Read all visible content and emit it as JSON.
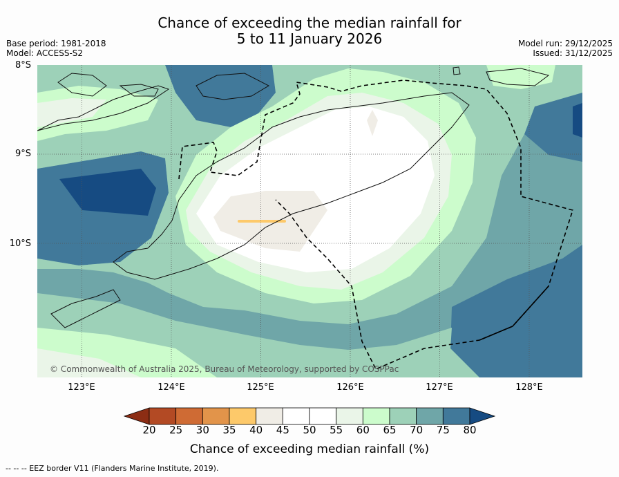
{
  "header": {
    "title_line1": "Chance of exceeding the median rainfall for",
    "title_line2": "5 to 11 January 2026",
    "base_period": "Base period: 1981-2018",
    "model": "Model: ACCESS-S2",
    "model_run": "Model run: 29/12/2025",
    "issued": "Issued: 31/12/2025"
  },
  "map": {
    "lat_labels": [
      "8°S",
      "9°S",
      "10°S"
    ],
    "lon_labels": [
      "123°E",
      "124°E",
      "125°E",
      "126°E",
      "127°E",
      "128°E"
    ],
    "copyright": "© Commonwealth of Australia 2025, Bureau of Meteorology, supported by COSPPac"
  },
  "colorbar": {
    "title": "Chance of exceeding median rainfall (%)",
    "ticks": [
      "20",
      "25",
      "30",
      "35",
      "40",
      "45",
      "50",
      "55",
      "60",
      "65",
      "70",
      "75",
      "80"
    ],
    "colors": [
      "#8c2d14",
      "#b34a24",
      "#cf6b34",
      "#e2944a",
      "#fdc96a",
      "#f0ede6",
      "#ffffff",
      "#ffffff",
      "#eaf5e8",
      "#ccfccc",
      "#9dd1b8",
      "#6fa6a8",
      "#41799a",
      "#164b82"
    ]
  },
  "footer": {
    "legend": "--  --  -- EEZ border V11 (Flanders Marine Institute, 2019)."
  }
}
